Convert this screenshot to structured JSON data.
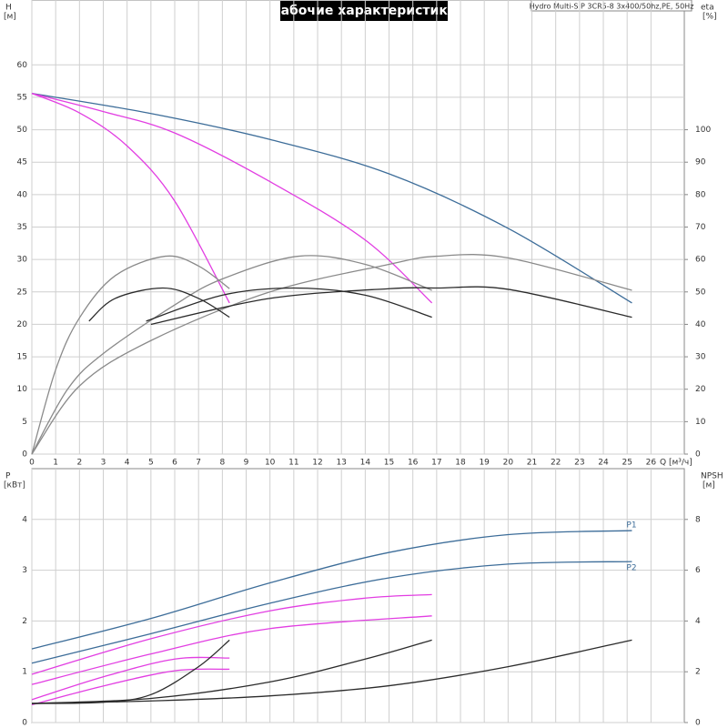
{
  "chart_data": [
    {
      "type": "line",
      "title": "Рабочие характеристики",
      "subtitle": "Hydro Multi-S P 3CR5-8 3x400/50hz,PE, 50Hz",
      "xlabel": "Q [м³/ч]",
      "ylabel": "H",
      "ylabel_unit": "[м]",
      "y2label": "eta",
      "y2label_unit": "[%]",
      "xlim": [
        0,
        27.4
      ],
      "xticks": [
        0,
        1,
        2,
        3,
        4,
        5,
        6,
        7,
        8,
        9,
        10,
        11,
        12,
        13,
        14,
        15,
        16,
        17,
        18,
        19,
        20,
        21,
        22,
        23,
        24,
        25,
        26
      ],
      "ylim": [
        0,
        70
      ],
      "yticks": [
        0,
        5,
        10,
        15,
        20,
        25,
        30,
        35,
        40,
        45,
        50,
        55,
        60
      ],
      "y2lim": [
        0,
        140
      ],
      "y2ticks": [
        0,
        10,
        20,
        30,
        40,
        50,
        60,
        70,
        80,
        90,
        100
      ],
      "grid": true,
      "series": [
        {
          "color": "#3d6d99",
          "x": [
            0,
            5,
            10,
            15,
            20,
            25.2
          ],
          "values": [
            55.6,
            52.5,
            48.5,
            43.2,
            34.8,
            23.3
          ]
        },
        {
          "color": "#e23ee2",
          "x": [
            0,
            3,
            6,
            10,
            14,
            16.8
          ],
          "values": [
            55.6,
            52.8,
            49.5,
            42,
            33,
            23.3
          ]
        },
        {
          "color": "#e23ee2",
          "x": [
            0,
            2,
            4,
            6,
            8.3
          ],
          "values": [
            55.6,
            52.6,
            47.5,
            39,
            23.3
          ]
        },
        {
          "color": "#8a8a8a",
          "axis": "y2",
          "x": [
            0,
            2,
            5,
            10,
            15,
            17,
            20,
            25.2
          ],
          "values": [
            0,
            21,
            35,
            50,
            58.5,
            61,
            60.5,
            50.5
          ]
        },
        {
          "color": "#8a8a8a",
          "axis": "y2",
          "x": [
            0,
            1.5,
            3,
            6,
            8,
            11.2,
            14,
            16.8
          ],
          "values": [
            0,
            20,
            31,
            46,
            54,
            61,
            58.5,
            50.5
          ]
        },
        {
          "color": "#8a8a8a",
          "axis": "y2",
          "x": [
            0,
            1,
            2,
            3.5,
            5.6,
            7,
            8.3
          ],
          "values": [
            0,
            26,
            42,
            55,
            61,
            58,
            51
          ]
        },
        {
          "color": "#2b2b2b",
          "axis": "y2",
          "x": [
            5,
            10,
            15,
            17,
            20,
            25.2
          ],
          "values": [
            40,
            48,
            51,
            51.2,
            50.8,
            42.2
          ]
        },
        {
          "color": "#2b2b2b",
          "axis": "y2",
          "x": [
            4.8,
            8,
            11,
            14,
            16.8
          ],
          "values": [
            41,
            49,
            51.2,
            49,
            42.2
          ]
        },
        {
          "color": "#2b2b2b",
          "axis": "y2",
          "x": [
            2.4,
            3.5,
            5.5,
            7,
            8.3
          ],
          "values": [
            41,
            48,
            51.2,
            48,
            42.2
          ]
        }
      ]
    },
    {
      "type": "line",
      "ylabel": "P",
      "ylabel_unit": "[кВт]",
      "y2label": "NPSH",
      "y2label_unit": "[м]",
      "xlim": [
        0,
        27.4
      ],
      "xticks": [
        0,
        1,
        2,
        3,
        4,
        5,
        6,
        7,
        8,
        9,
        10,
        11,
        12,
        13,
        14,
        15,
        16,
        17,
        18,
        19,
        20,
        21,
        22,
        23,
        24,
        25,
        26
      ],
      "ylim": [
        0,
        5
      ],
      "yticks": [
        0,
        1,
        2,
        3,
        4
      ],
      "y2lim": [
        0,
        10
      ],
      "y2ticks": [
        0,
        2,
        4,
        6,
        8
      ],
      "grid": true,
      "series": [
        {
          "name": "P1",
          "color": "#3d6d99",
          "x": [
            0,
            5,
            10,
            15,
            20,
            25.2
          ],
          "values": [
            1.45,
            2.05,
            2.75,
            3.35,
            3.7,
            3.78
          ]
        },
        {
          "name": "P2",
          "color": "#3d6d99",
          "x": [
            0,
            5,
            10,
            15,
            20,
            25.2
          ],
          "values": [
            1.17,
            1.75,
            2.35,
            2.85,
            3.12,
            3.17
          ]
        },
        {
          "color": "#e23ee2",
          "x": [
            0,
            5,
            10,
            14,
            16.8
          ],
          "values": [
            0.95,
            1.65,
            2.2,
            2.45,
            2.52
          ]
        },
        {
          "color": "#e23ee2",
          "x": [
            0,
            5,
            10,
            16.8
          ],
          "values": [
            0.75,
            1.35,
            1.85,
            2.1
          ]
        },
        {
          "color": "#e23ee2",
          "x": [
            0,
            3,
            6,
            8.3
          ],
          "values": [
            0.45,
            0.9,
            1.25,
            1.27
          ]
        },
        {
          "color": "#e23ee2",
          "x": [
            0,
            3,
            6,
            8.3
          ],
          "values": [
            0.35,
            0.72,
            1.02,
            1.05
          ]
        },
        {
          "color": "#2b2b2b",
          "axis": "y2",
          "x": [
            0,
            5,
            10,
            15,
            20,
            25.2
          ],
          "values": [
            0.75,
            0.85,
            1.05,
            1.45,
            2.2,
            3.25
          ]
        },
        {
          "color": "#2b2b2b",
          "axis": "y2",
          "x": [
            0,
            5,
            10,
            14,
            16.8
          ],
          "values": [
            0.75,
            0.95,
            1.6,
            2.5,
            3.25
          ]
        },
        {
          "color": "#2b2b2b",
          "axis": "y2",
          "x": [
            0,
            3,
            5,
            7,
            8.3
          ],
          "values": [
            0.75,
            0.8,
            1.1,
            2.2,
            3.25
          ]
        }
      ]
    }
  ]
}
